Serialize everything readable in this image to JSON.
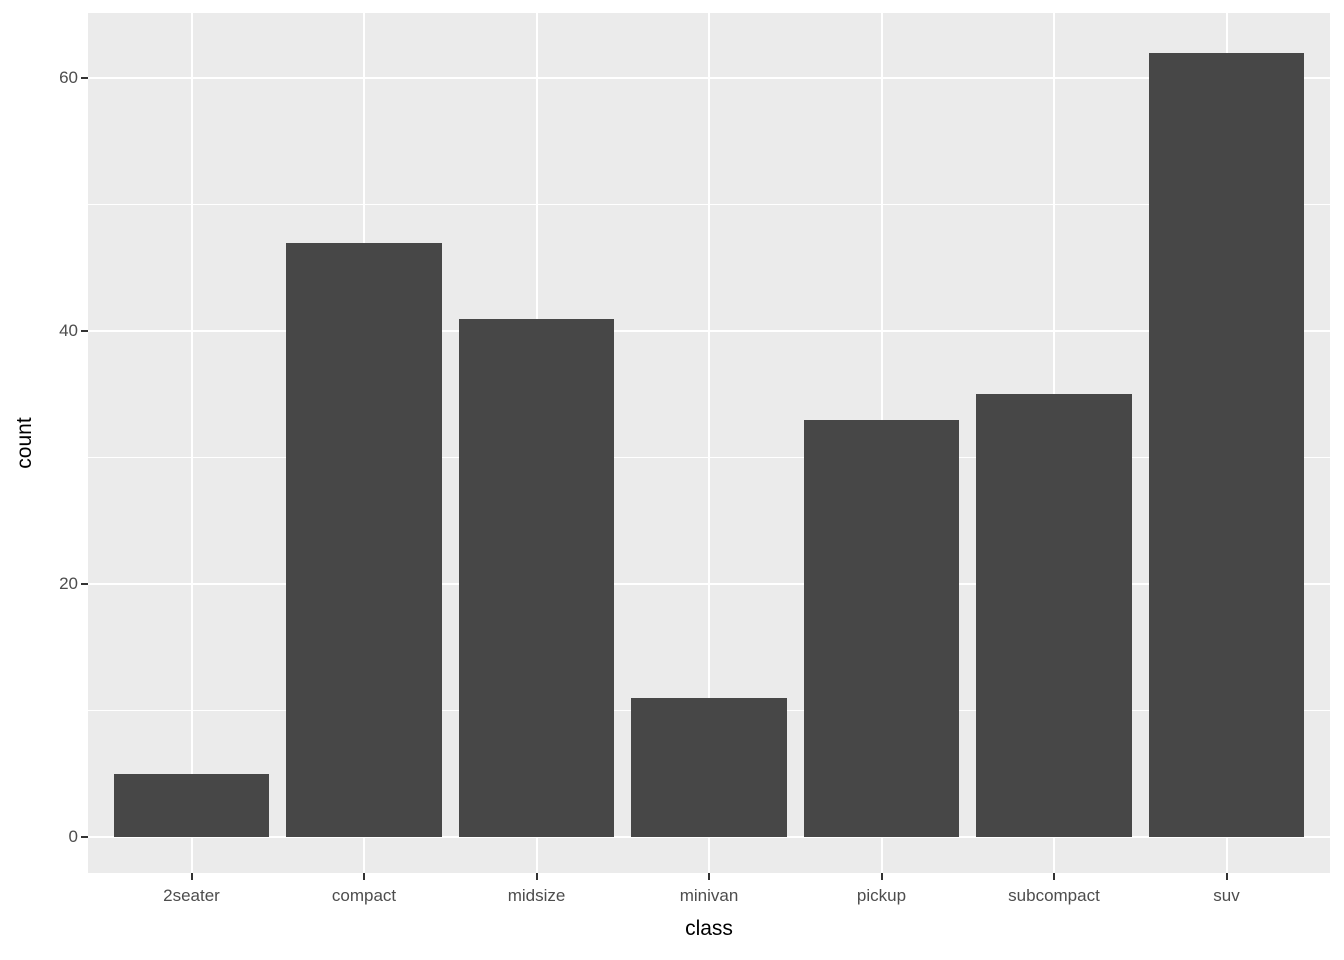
{
  "chart_data": {
    "type": "bar",
    "title": "",
    "xlabel": "class",
    "ylabel": "count",
    "categories": [
      "2seater",
      "compact",
      "midsize",
      "minivan",
      "pickup",
      "subcompact",
      "suv"
    ],
    "values": [
      5,
      47,
      41,
      11,
      33,
      35,
      62
    ],
    "ylim": [
      0,
      62
    ],
    "yticks": [
      0,
      20,
      40,
      60
    ],
    "ytick_labels": [
      "0",
      "20",
      "40",
      "60"
    ],
    "yticks_minor": [
      10,
      30,
      50
    ],
    "grid": "on",
    "legend": "none",
    "colors": {
      "bar_fill": "#474747",
      "panel_background": "#EBEBEB",
      "gridline": "#FFFFFF",
      "tick_label": "#4D4D4D",
      "tick_mark": "#333333",
      "axis_title": "#000000",
      "figure_background": "#FFFFFF"
    }
  }
}
